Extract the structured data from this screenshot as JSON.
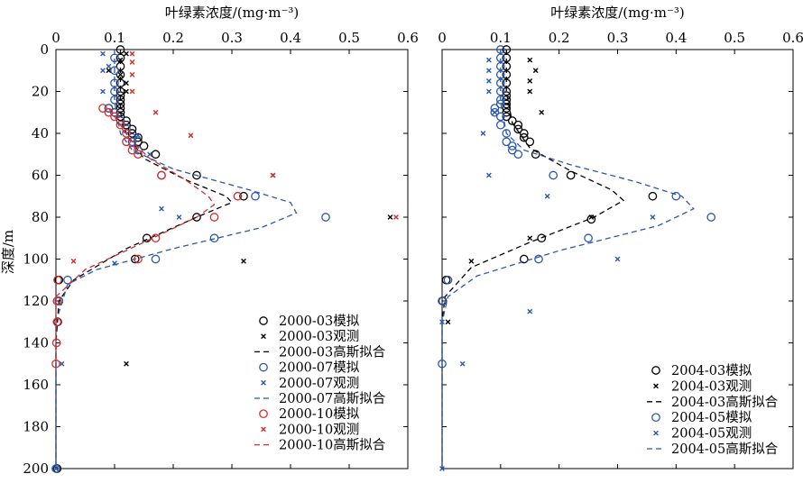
{
  "chart_data": [
    {
      "type": "scatter",
      "panel": "left",
      "xlabel": "叶绿素浓度/(mg·m⁻³)",
      "ylabel": "深度/m",
      "x_axis_position": "top",
      "y_axis_inverted": true,
      "xlim": [
        0,
        0.6
      ],
      "ylim": [
        0,
        200
      ],
      "xticks": [
        "0",
        "0.1",
        "0.2",
        "0.3",
        "0.4",
        "0.5",
        "0.6"
      ],
      "yticks": [
        "0",
        "20",
        "40",
        "60",
        "80",
        "100",
        "120",
        "140",
        "160",
        "180",
        "200"
      ],
      "legend_position": "bottom-right",
      "grid": false,
      "series": [
        {
          "name": "2000-03模拟",
          "kind": "sim",
          "color": "#000000",
          "x": [
            0.11,
            0.11,
            0.11,
            0.11,
            0.11,
            0.11,
            0.11,
            0.11,
            0.11,
            0.11,
            0.11,
            0.09,
            0.1,
            0.11,
            0.12,
            0.12,
            0.13,
            0.13,
            0.14,
            0.14,
            0.15,
            0.17,
            0.24,
            0.32,
            0.24,
            0.155,
            0.135,
            0.005,
            0.005,
            0.003,
            0.002
          ],
          "y": [
            0,
            4,
            8,
            12,
            16,
            20,
            22,
            24,
            26,
            28,
            30,
            28,
            30,
            32,
            34,
            36,
            38,
            40,
            42,
            44,
            46,
            50,
            60,
            70,
            80,
            90,
            100,
            110,
            120,
            130,
            200
          ]
        },
        {
          "name": "2000-03观测",
          "kind": "obs",
          "color": "#000000",
          "x": [
            0.12,
            0.11,
            0.09,
            0.11,
            0.12,
            0.12,
            0.57,
            0.32,
            0.12,
            0.0
          ],
          "y": [
            2,
            5,
            10,
            12,
            16,
            20,
            80,
            101,
            150,
            200
          ]
        },
        {
          "name": "2000-03高斯拟合",
          "kind": "fit",
          "color": "#000000",
          "dash": "6,4",
          "x": [
            0.11,
            0.11,
            0.11,
            0.12,
            0.15,
            0.22,
            0.29,
            0.3,
            0.24,
            0.12,
            0.03,
            0.005,
            0.0,
            0.0,
            0.0
          ],
          "y": [
            0,
            20,
            30,
            40,
            52,
            62,
            70,
            73,
            80,
            95,
            110,
            120,
            140,
            170,
            200
          ]
        },
        {
          "name": "2000-07模拟",
          "kind": "sim",
          "color": "#2a58ad",
          "x": [
            0.1,
            0.1,
            0.1,
            0.1,
            0.1,
            0.09,
            0.1,
            0.11,
            0.12,
            0.13,
            0.13,
            0.14,
            0.18,
            0.34,
            0.46,
            0.27,
            0.17,
            0.02,
            0.005,
            0.0
          ],
          "y": [
            4,
            10,
            16,
            20,
            24,
            28,
            30,
            34,
            38,
            42,
            44,
            48,
            60,
            70,
            80,
            90,
            100,
            110,
            120,
            200
          ]
        },
        {
          "name": "2000-07观测",
          "kind": "obs",
          "color": "#2a58ad",
          "x": [
            0.08,
            0.09,
            0.08,
            0.08,
            0.14,
            0.16,
            0.37,
            0.18,
            0.21,
            0.1,
            0.01,
            0.0
          ],
          "y": [
            2,
            8,
            10,
            20,
            41,
            50,
            60,
            76,
            80,
            102,
            150,
            200
          ]
        },
        {
          "name": "2000-07高斯拟合",
          "kind": "fit",
          "color": "#2a58ad",
          "dash": "6,4",
          "x": [
            0.1,
            0.1,
            0.11,
            0.13,
            0.2,
            0.33,
            0.4,
            0.41,
            0.35,
            0.2,
            0.07,
            0.02,
            0.0,
            0.0
          ],
          "y": [
            0,
            25,
            40,
            48,
            57,
            67,
            73,
            78,
            85,
            95,
            105,
            112,
            130,
            200
          ]
        },
        {
          "name": "2000-10模拟",
          "kind": "sim",
          "color": "#d42a2a",
          "x": [
            0.08,
            0.09,
            0.1,
            0.11,
            0.12,
            0.12,
            0.13,
            0.14,
            0.18,
            0.31,
            0.27,
            0.17,
            0.14,
            0.003,
            0.002,
            0.002,
            0.001,
            0.0
          ],
          "y": [
            28,
            30,
            32,
            36,
            40,
            44,
            48,
            50,
            60,
            70,
            80,
            90,
            100,
            110,
            120,
            130,
            140,
            150
          ]
        },
        {
          "name": "2000-10观测",
          "kind": "obs",
          "color": "#d42a2a",
          "x": [
            0.13,
            0.13,
            0.13,
            0.13,
            0.17,
            0.23,
            0.37,
            0.58,
            0.03
          ],
          "y": [
            2,
            6,
            12,
            20,
            30,
            41,
            60,
            80,
            101
          ]
        },
        {
          "name": "2000-10高斯拟合",
          "kind": "fit",
          "color": "#d42a2a",
          "dash": "6,4",
          "x": [
            0.09,
            0.11,
            0.13,
            0.16,
            0.22,
            0.26,
            0.27,
            0.24,
            0.15,
            0.05,
            0.0,
            0.0
          ],
          "y": [
            28,
            36,
            44,
            52,
            62,
            70,
            74,
            80,
            92,
            105,
            118,
            150
          ]
        }
      ]
    },
    {
      "type": "scatter",
      "panel": "right",
      "xlabel": "叶绿素浓度/(mg·m⁻³)",
      "x_axis_position": "top",
      "y_axis_inverted": true,
      "xlim": [
        0,
        0.6
      ],
      "ylim": [
        0,
        200
      ],
      "xticks": [
        "0",
        "0.1",
        "0.2",
        "0.3",
        "0.4",
        "0.5",
        "0.6"
      ],
      "legend_position": "bottom-right",
      "grid": false,
      "series": [
        {
          "name": "2004-03模拟",
          "kind": "sim",
          "color": "#000000",
          "x": [
            0.11,
            0.11,
            0.11,
            0.11,
            0.11,
            0.11,
            0.11,
            0.11,
            0.11,
            0.11,
            0.11,
            0.11,
            0.12,
            0.13,
            0.13,
            0.14,
            0.14,
            0.15,
            0.16,
            0.22,
            0.36,
            0.255,
            0.17,
            0.14,
            0.007,
            0.001
          ],
          "y": [
            0,
            4,
            8,
            12,
            16,
            20,
            22,
            24,
            26,
            28,
            30,
            32,
            34,
            36,
            38,
            40,
            42,
            44,
            50,
            60,
            70,
            81,
            90,
            100,
            110,
            120
          ]
        },
        {
          "name": "2004-03观测",
          "kind": "obs",
          "color": "#000000",
          "x": [
            0.15,
            0.16,
            0.15,
            0.15,
            0.17,
            0.255,
            0.15,
            0.05,
            0.01
          ],
          "y": [
            5,
            10,
            15,
            20,
            30,
            80,
            90,
            101,
            130
          ]
        },
        {
          "name": "2004-03高斯拟合",
          "kind": "fit",
          "color": "#000000",
          "dash": "6,4",
          "x": [
            0.11,
            0.11,
            0.12,
            0.15,
            0.22,
            0.29,
            0.31,
            0.26,
            0.15,
            0.05,
            0.005,
            0.0,
            0.0
          ],
          "y": [
            0,
            20,
            35,
            47,
            58,
            67,
            72,
            80,
            92,
            104,
            118,
            130,
            200
          ]
        },
        {
          "name": "2004-05模拟",
          "kind": "sim",
          "color": "#2a58ad",
          "x": [
            0.1,
            0.1,
            0.1,
            0.1,
            0.1,
            0.1,
            0.1,
            0.1,
            0.09,
            0.09,
            0.1,
            0.1,
            0.11,
            0.11,
            0.12,
            0.12,
            0.13,
            0.19,
            0.4,
            0.46,
            0.25,
            0.165,
            0.01,
            0.0,
            0.0
          ],
          "y": [
            0,
            4,
            8,
            12,
            16,
            20,
            24,
            26,
            28,
            30,
            32,
            36,
            40,
            44,
            46,
            48,
            50,
            60,
            70,
            80,
            90,
            100,
            110,
            120,
            150
          ]
        },
        {
          "name": "2004-05观测",
          "kind": "obs",
          "color": "#2a58ad",
          "x": [
            0.08,
            0.08,
            0.08,
            0.08,
            0.09,
            0.07,
            0.08,
            0.18,
            0.36,
            0.3,
            0.15,
            0.035,
            0.0,
            0.0
          ],
          "y": [
            5,
            10,
            15,
            20,
            30,
            40,
            60,
            70,
            80,
            100,
            125,
            150,
            130,
            200
          ]
        },
        {
          "name": "2004-05高斯拟合",
          "kind": "fit",
          "color": "#2a58ad",
          "dash": "6,4",
          "x": [
            0.1,
            0.1,
            0.11,
            0.14,
            0.22,
            0.33,
            0.41,
            0.43,
            0.37,
            0.2,
            0.06,
            0.01,
            0.0,
            0.0
          ],
          "y": [
            0,
            25,
            40,
            48,
            55,
            63,
            70,
            76,
            84,
            96,
            108,
            118,
            130,
            200
          ]
        }
      ]
    }
  ]
}
